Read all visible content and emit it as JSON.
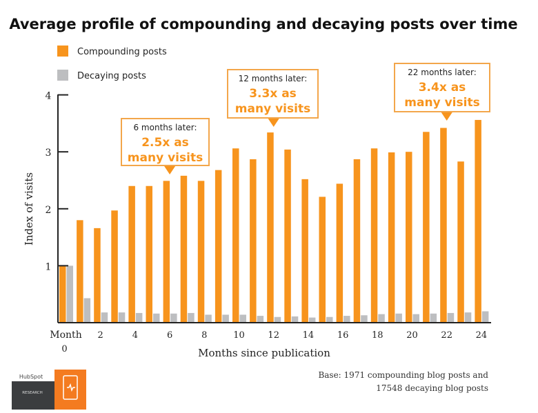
{
  "chart_data": {
    "type": "bar",
    "title": "Average profile of compounding and decaying posts over time",
    "xlabel": "Months since publication",
    "ylabel": "Index of visits",
    "ylim": [
      0,
      4
    ],
    "yticks": [
      "1",
      "2",
      "3",
      "4"
    ],
    "xtick_labels": [
      {
        "month": 0,
        "label": "Month",
        "label2": "0"
      },
      {
        "month": 2,
        "label": "2"
      },
      {
        "month": 4,
        "label": "4"
      },
      {
        "month": 6,
        "label": "6"
      },
      {
        "month": 8,
        "label": "8"
      },
      {
        "month": 10,
        "label": "10"
      },
      {
        "month": 12,
        "label": "12"
      },
      {
        "month": 14,
        "label": "14"
      },
      {
        "month": 16,
        "label": "16"
      },
      {
        "month": 18,
        "label": "18"
      },
      {
        "month": 20,
        "label": "20"
      },
      {
        "month": 22,
        "label": "22"
      },
      {
        "month": 24,
        "label": "24"
      }
    ],
    "categories": [
      0,
      1,
      2,
      3,
      4,
      5,
      6,
      7,
      8,
      9,
      10,
      11,
      12,
      13,
      14,
      15,
      16,
      17,
      18,
      19,
      20,
      21,
      22,
      23,
      24
    ],
    "series": [
      {
        "name": "Compounding posts",
        "color": "#F7941D",
        "values": [
          1.0,
          1.8,
          1.66,
          1.97,
          2.4,
          2.4,
          2.49,
          2.58,
          2.49,
          2.68,
          3.06,
          2.87,
          3.34,
          3.04,
          2.52,
          2.21,
          2.44,
          2.87,
          3.06,
          2.99,
          3.0,
          3.35,
          3.42,
          2.83,
          3.56
        ]
      },
      {
        "name": "Decaying posts",
        "color": "#BDBEC0",
        "values": [
          1.0,
          0.43,
          0.18,
          0.18,
          0.17,
          0.16,
          0.16,
          0.17,
          0.14,
          0.14,
          0.14,
          0.12,
          0.1,
          0.11,
          0.09,
          0.1,
          0.12,
          0.13,
          0.15,
          0.16,
          0.15,
          0.16,
          0.17,
          0.18,
          0.2
        ]
      }
    ],
    "legend_placement": "top-left",
    "grid": false,
    "annotations": [
      {
        "month": 6,
        "line1": "6 months later:",
        "line2": "2.5x as",
        "line3": "many visits"
      },
      {
        "month": 12,
        "line1": "12 months later:",
        "line2": "3.3x as",
        "line3": "many visits"
      },
      {
        "month": 22,
        "line1": "22 months later:",
        "line2": "3.4x as",
        "line3": "many visits"
      }
    ]
  },
  "footer": {
    "logo_brand": "HubSpot",
    "logo_sub": "RESEARCH",
    "base_line1": "Base: 1971 compounding blog posts and",
    "base_line2": "17548 decaying blog posts"
  }
}
